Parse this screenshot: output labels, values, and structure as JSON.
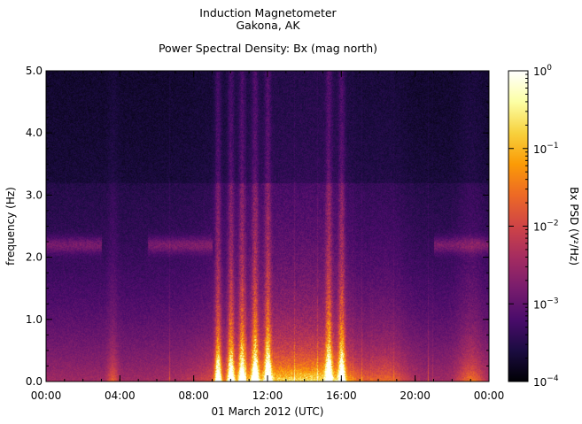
{
  "header": {
    "line1": "Induction Magnetometer",
    "line2": "Gakona, AK",
    "line3": "Power Spectral Density: Bx (mag north)"
  },
  "chart_data": {
    "type": "heatmap",
    "title": "Induction Magnetometer Gakona, AK — Power Spectral Density: Bx (mag north)",
    "xlabel": "01 March 2012 (UTC)",
    "ylabel": "frequency (Hz)",
    "x_ticks": [
      "00:00",
      "04:00",
      "08:00",
      "12:00",
      "16:00",
      "20:00",
      "00:00"
    ],
    "x_range_hours": [
      0,
      24
    ],
    "y_ticks": [
      "0.0",
      "1.0",
      "2.0",
      "3.0",
      "4.0",
      "5.0"
    ],
    "y_range": [
      0,
      5
    ],
    "colorbar": {
      "label": "Bx PSD (V²/Hz)",
      "scale": "log",
      "range": [
        0.0001,
        1
      ],
      "tick_bases": [
        "10",
        "10",
        "10",
        "10",
        "10"
      ],
      "tick_exponents": [
        "0",
        "−1",
        "−2",
        "−3",
        "−4"
      ],
      "tick_values": [
        1,
        0.1,
        0.01,
        0.001,
        0.0001
      ],
      "colormap": [
        "#000004",
        "#1b0c41",
        "#4a0c6b",
        "#781c6d",
        "#a52c60",
        "#cf4446",
        "#ed6925",
        "#fb9b06",
        "#f7d13d",
        "#fcffa4",
        "#ffffff"
      ]
    },
    "features": {
      "pc1_band_hz": 2.2,
      "pc1_band_hours": [
        [
          0,
          3
        ],
        [
          5.5,
          9
        ],
        [
          21,
          24
        ]
      ],
      "broadband_bursts_hours": [
        9.3,
        10,
        10.6,
        11.3,
        12,
        15.3,
        16
      ]
    }
  }
}
